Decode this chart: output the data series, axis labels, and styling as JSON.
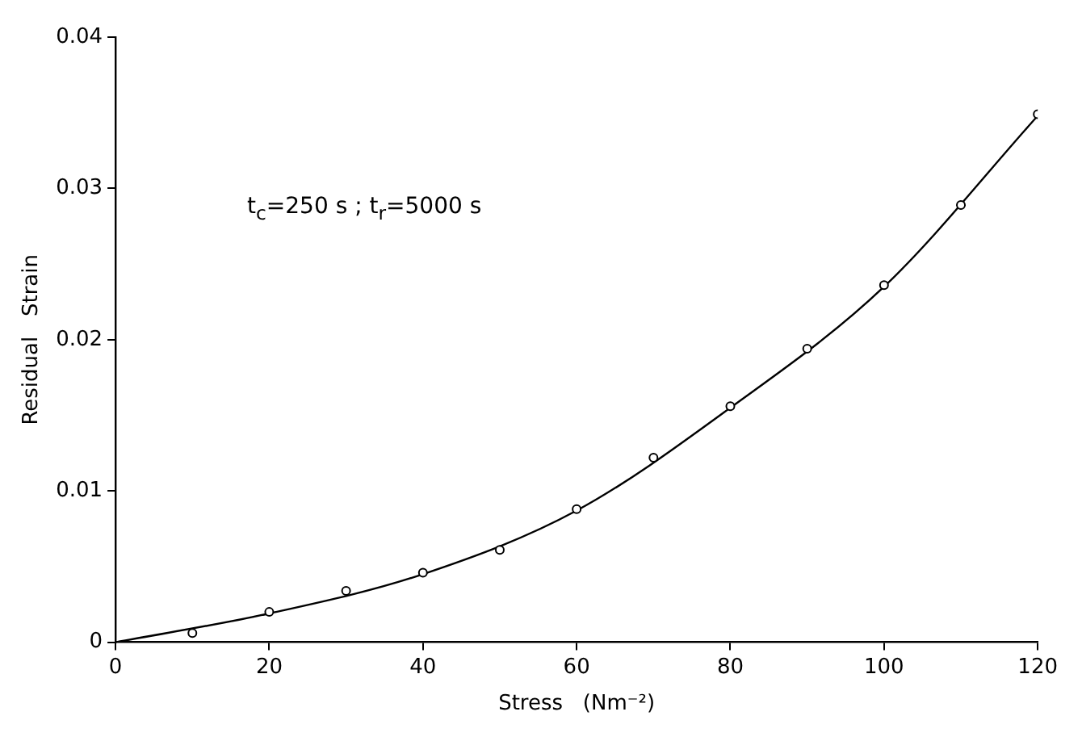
{
  "chart_data": {
    "type": "scatter",
    "xlabel": "Stress   (Nm⁻²)",
    "ylabel": "Residual   Strain",
    "annotations": [
      "t$_{c}$=250 s ; t$_{r}$=5000 s"
    ],
    "xlim": [
      0,
      120
    ],
    "xticks": [
      0,
      20,
      40,
      60,
      80,
      100,
      120
    ],
    "ylim": [
      0,
      0.04
    ],
    "yticks": [
      0,
      0.01,
      0.02,
      0.03,
      0.04
    ],
    "grid": false,
    "legend": false,
    "series": [
      {
        "type": "scatter",
        "marker": "circle",
        "color": "#000000",
        "x": [
          10,
          20,
          30,
          40,
          50,
          60,
          70,
          80,
          90,
          100,
          110,
          120
        ],
        "values": [
          0.0006,
          0.002,
          0.0034,
          0.0046,
          0.0061,
          0.0088,
          0.0122,
          0.0156,
          0.0194,
          0.0236,
          0.0289,
          0.0349
        ]
      },
      {
        "type": "line",
        "marker": "none",
        "line_style": "solid",
        "color": "#000000",
        "x": [
          0,
          20,
          40,
          60,
          80,
          100,
          120
        ],
        "values": [
          0,
          0.0019,
          0.0045,
          0.0087,
          0.0155,
          0.0235,
          0.0348
        ]
      }
    ]
  }
}
